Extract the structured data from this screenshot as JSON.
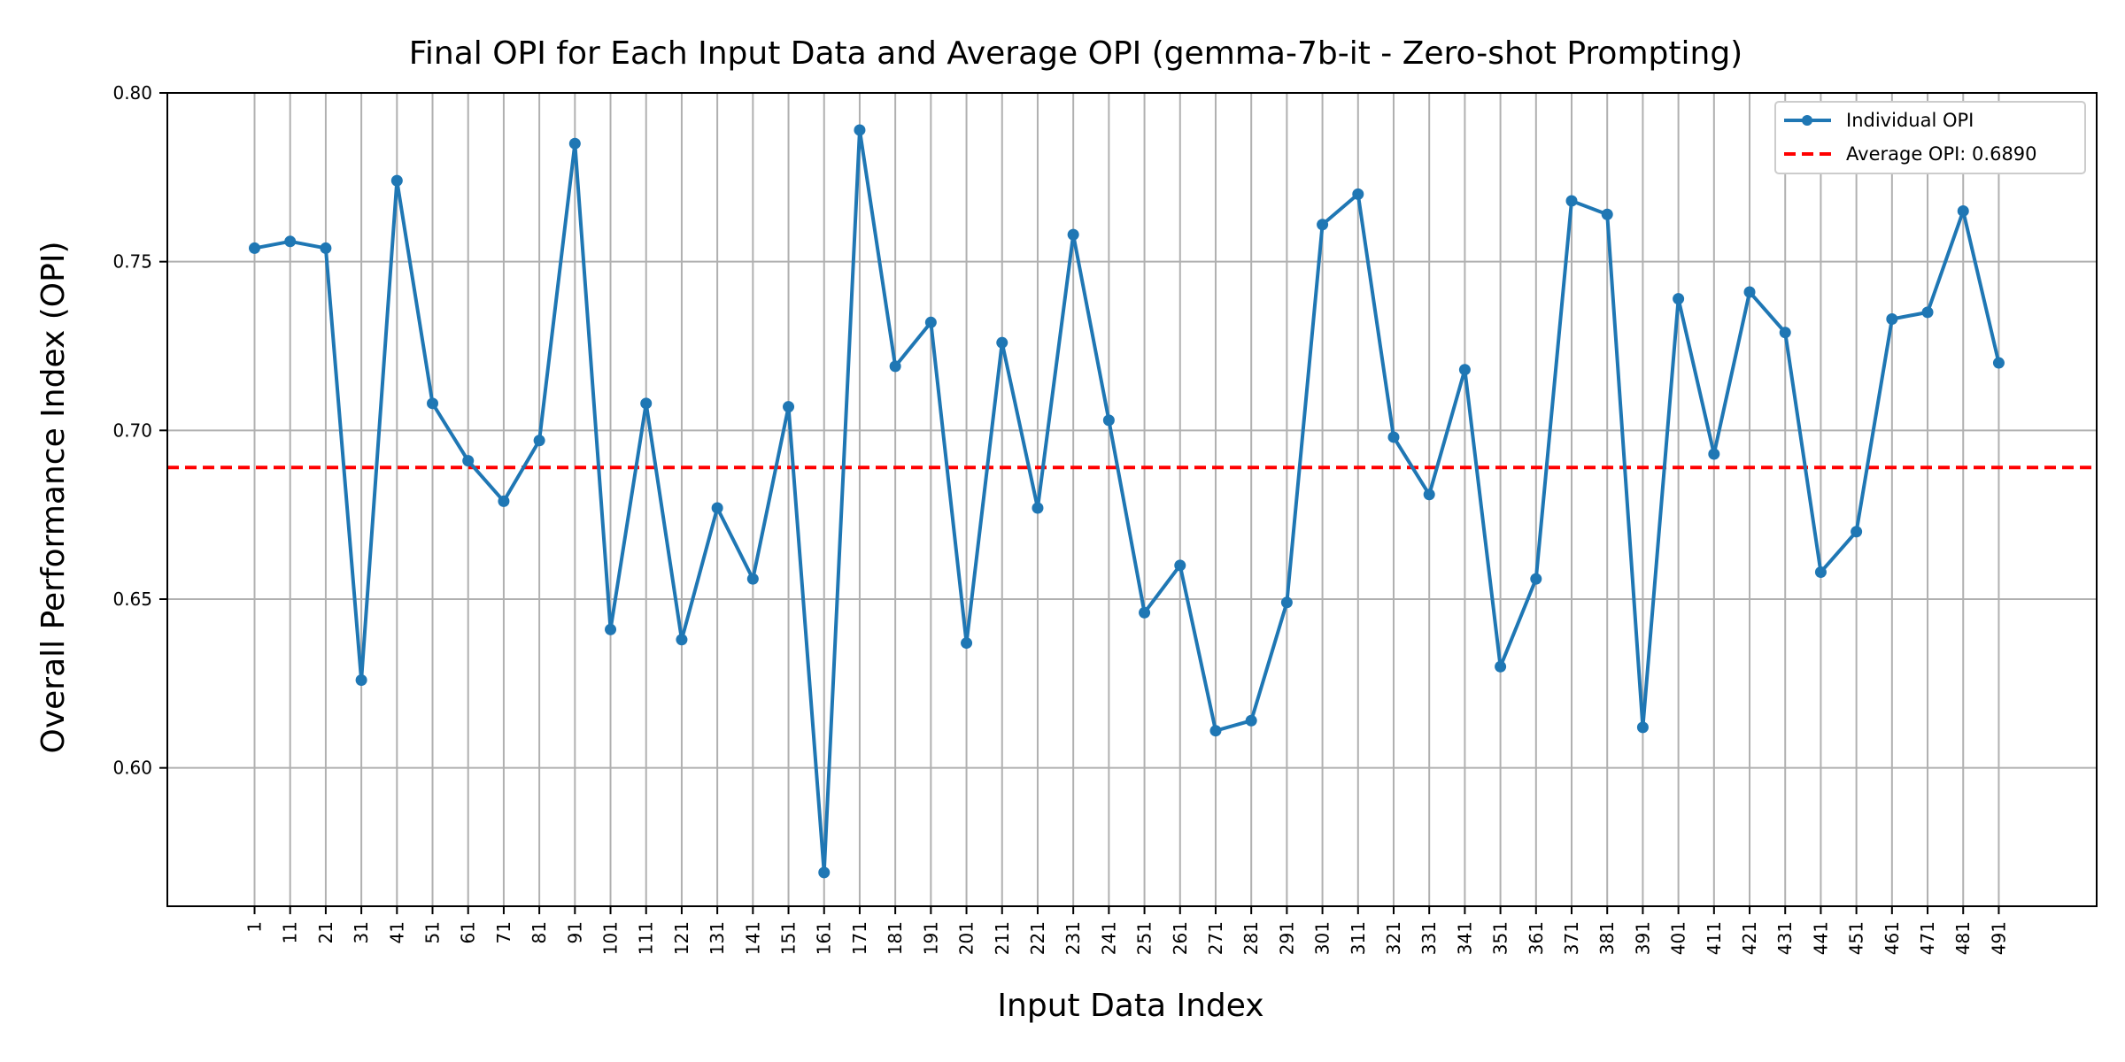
{
  "chart_data": {
    "type": "line",
    "title": "Final OPI for Each Input Data and Average OPI (gemma-7b-it - Zero-shot Prompting)",
    "xlabel": "Input Data Index",
    "ylabel": "Overall Performance Index (OPI)",
    "ylim": [
      0.559,
      0.8
    ],
    "yticks": [
      0.6,
      0.65,
      0.7,
      0.75,
      0.8
    ],
    "ytick_labels": [
      "0.60",
      "0.65",
      "0.70",
      "0.75",
      "0.80"
    ],
    "x": [
      1,
      11,
      21,
      31,
      41,
      51,
      61,
      71,
      81,
      91,
      101,
      111,
      121,
      131,
      141,
      151,
      161,
      171,
      181,
      191,
      201,
      211,
      221,
      231,
      241,
      251,
      261,
      271,
      281,
      291,
      301,
      311,
      321,
      331,
      341,
      351,
      361,
      371,
      381,
      391,
      401,
      411,
      421,
      431,
      441,
      451,
      461,
      471,
      481,
      491
    ],
    "grid": true,
    "legend_placement": "top-right",
    "series": [
      {
        "name": "Individual OPI",
        "color": "#1f77b4",
        "values": [
          0.754,
          0.756,
          0.754,
          0.626,
          0.774,
          0.708,
          0.691,
          0.679,
          0.697,
          0.785,
          0.641,
          0.708,
          0.638,
          0.677,
          0.656,
          0.707,
          0.569,
          0.789,
          0.719,
          0.732,
          0.637,
          0.726,
          0.677,
          0.758,
          0.703,
          0.646,
          0.66,
          0.611,
          0.614,
          0.649,
          0.761,
          0.77,
          0.698,
          0.681,
          0.718,
          0.63,
          0.656,
          0.768,
          0.764,
          0.612,
          0.739,
          0.693,
          0.741,
          0.729,
          0.658,
          0.67,
          0.733,
          0.735,
          0.765,
          0.72
        ]
      }
    ],
    "average": {
      "label": "Average OPI: 0.6890",
      "value": 0.689,
      "color": "#ff0000"
    }
  }
}
